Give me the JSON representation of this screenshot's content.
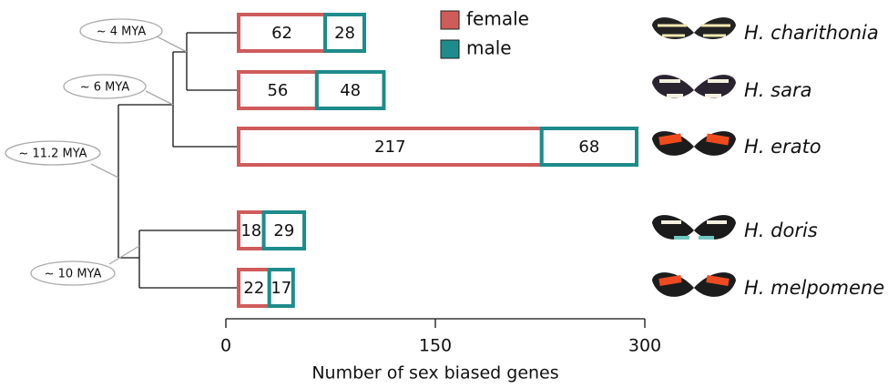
{
  "chart_data": {
    "type": "bar",
    "orientation": "horizontal",
    "stacked": true,
    "categories": [
      "H. charithonia",
      "H. sara",
      "H. erato",
      "H. doris",
      "H. melpomene"
    ],
    "series": [
      {
        "name": "female",
        "color": "#cf5b5b",
        "values": [
          62,
          56,
          217,
          18,
          22
        ]
      },
      {
        "name": "male",
        "color": "#1e8b8c",
        "values": [
          28,
          48,
          68,
          29,
          17
        ]
      }
    ],
    "xlim": [
      0,
      300
    ],
    "xticks": [
      0,
      150,
      300
    ],
    "xlabel": "Number of sex biased genes",
    "legend": "top",
    "annotations": [
      "~ 4 MYA",
      "~ 6 MYA",
      "~ 11.2 MYA",
      "~ 10 MYA"
    ]
  }
}
